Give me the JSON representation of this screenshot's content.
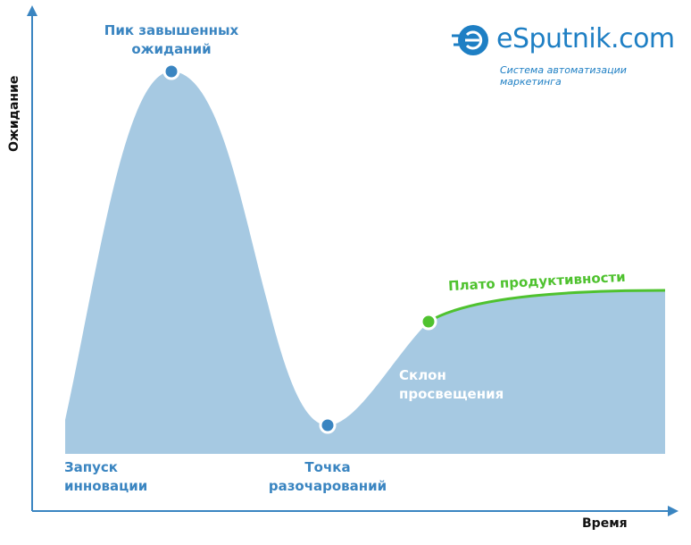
{
  "axes": {
    "y_label": "Ожидание",
    "x_label": "Время"
  },
  "logo": {
    "name": "eSputnik.com",
    "tagline": "Система автоматизации маркетинга"
  },
  "phases": [
    {
      "label": "Запуск инновации"
    },
    {
      "label": "Пик завышенных ожиданий"
    },
    {
      "label": "Точка разочарований"
    },
    {
      "label": "Склон просвещения"
    },
    {
      "label": "Плато продуктивности"
    }
  ]
}
